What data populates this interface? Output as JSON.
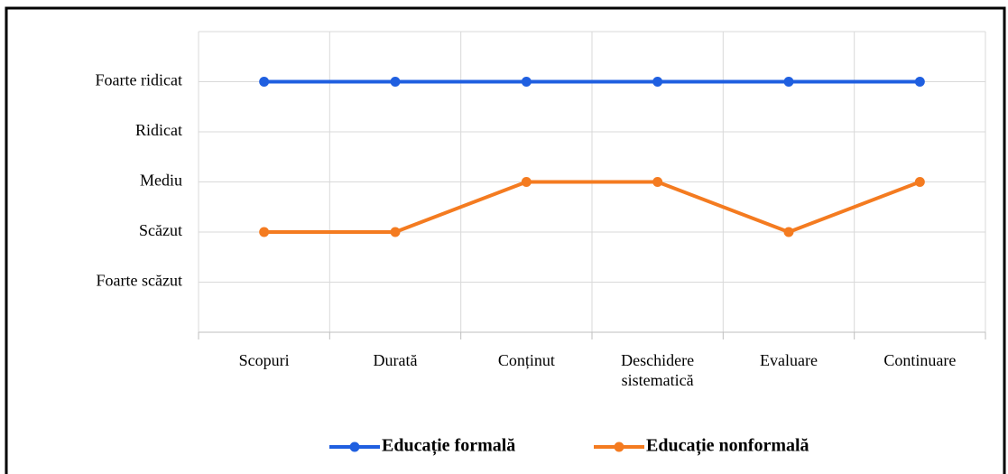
{
  "chart_data": {
    "type": "line",
    "categories": [
      "Scopuri",
      "Durată",
      "Conținut",
      "Deschidere sistematică",
      "Evaluare",
      "Continuare"
    ],
    "series": [
      {
        "name": "Educație formală",
        "color": "#1f5fe0",
        "values": [
          5,
          5,
          5,
          5,
          5,
          5
        ]
      },
      {
        "name": "Educație nonformală",
        "color": "#f47b20",
        "values": [
          2,
          2,
          3,
          3,
          2,
          3
        ]
      }
    ],
    "ylim": [
      0,
      6
    ],
    "yticks": [
      {
        "value": 1,
        "label": "Foarte scăzut"
      },
      {
        "value": 2,
        "label": "Scăzut"
      },
      {
        "value": 3,
        "label": "Mediu"
      },
      {
        "value": 4,
        "label": "Ridicat"
      },
      {
        "value": 5,
        "label": "Foarte ridicat"
      }
    ],
    "grid": true,
    "legend": "bottom"
  }
}
